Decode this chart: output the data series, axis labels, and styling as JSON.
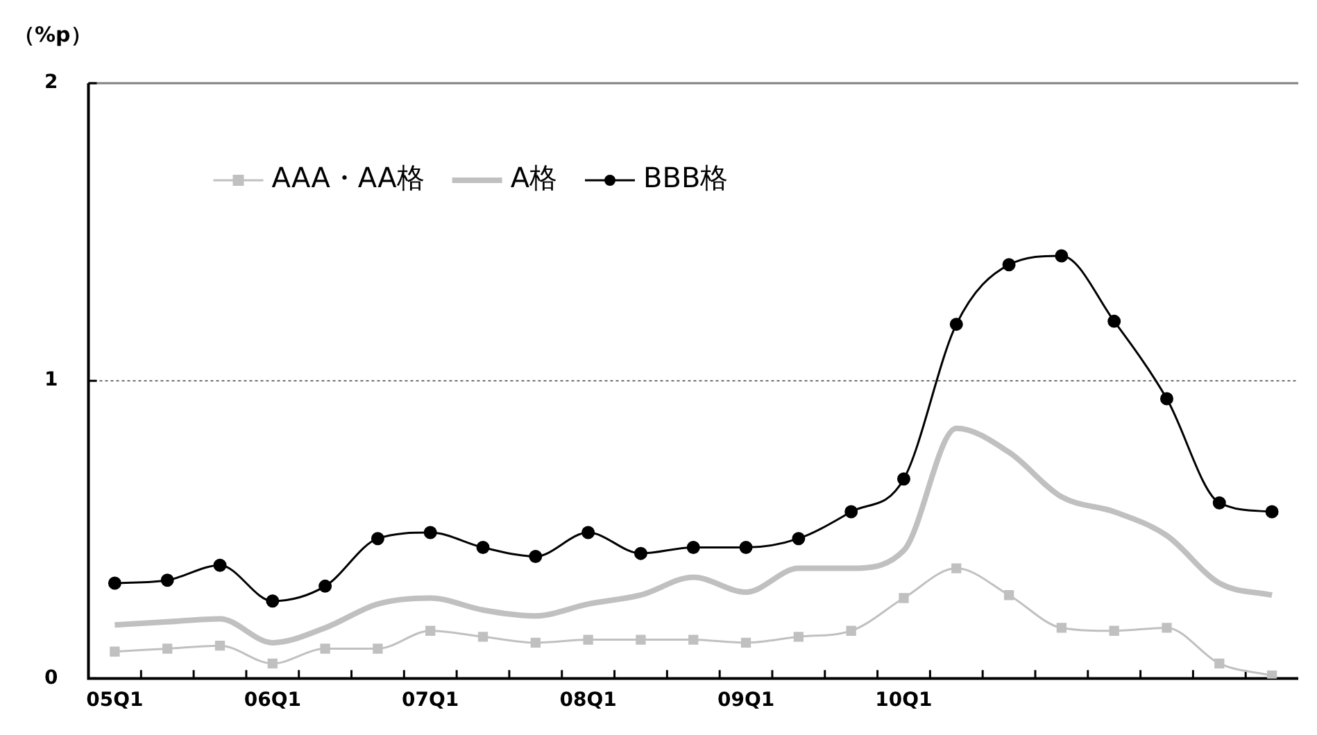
{
  "chart_data": {
    "type": "line",
    "ylabel": "（%p）",
    "categories": [
      "05Q1",
      null,
      null,
      "06Q1",
      null,
      null,
      "07Q1",
      null,
      null,
      "08Q1",
      null,
      null,
      "09Q1",
      null,
      null,
      "10Q1",
      null,
      null,
      null,
      null,
      null,
      null,
      null
    ],
    "series": [
      {
        "name": "AAA・AA格",
        "color": "#c0c0c0",
        "marker": "square",
        "values": [
          0.09,
          0.1,
          0.11,
          0.05,
          0.1,
          0.1,
          0.16,
          0.14,
          0.12,
          0.13,
          0.13,
          0.13,
          0.12,
          0.14,
          0.16,
          0.27,
          0.37,
          0.28,
          0.17,
          0.16,
          0.17,
          0.05,
          0.01
        ]
      },
      {
        "name": "A格",
        "color": "#c0c0c0",
        "marker": "none",
        "values": [
          0.18,
          0.19,
          0.2,
          0.12,
          0.17,
          0.25,
          0.27,
          0.23,
          0.21,
          0.25,
          0.28,
          0.34,
          0.29,
          0.37,
          0.37,
          0.43,
          0.84,
          0.76,
          0.61,
          0.56,
          0.48,
          0.32,
          0.28
        ]
      },
      {
        "name": "BBB格",
        "color": "#000000",
        "marker": "circle",
        "values": [
          0.32,
          0.33,
          0.38,
          0.26,
          0.31,
          0.47,
          0.49,
          0.44,
          0.41,
          0.49,
          0.42,
          0.44,
          0.44,
          0.47,
          0.56,
          0.67,
          1.19,
          1.39,
          1.42,
          1.2,
          0.94,
          0.59,
          0.56
        ]
      }
    ],
    "ylim": [
      0,
      2
    ],
    "yticks": [
      0,
      1,
      2
    ],
    "grid": "y",
    "legend": "top left"
  }
}
